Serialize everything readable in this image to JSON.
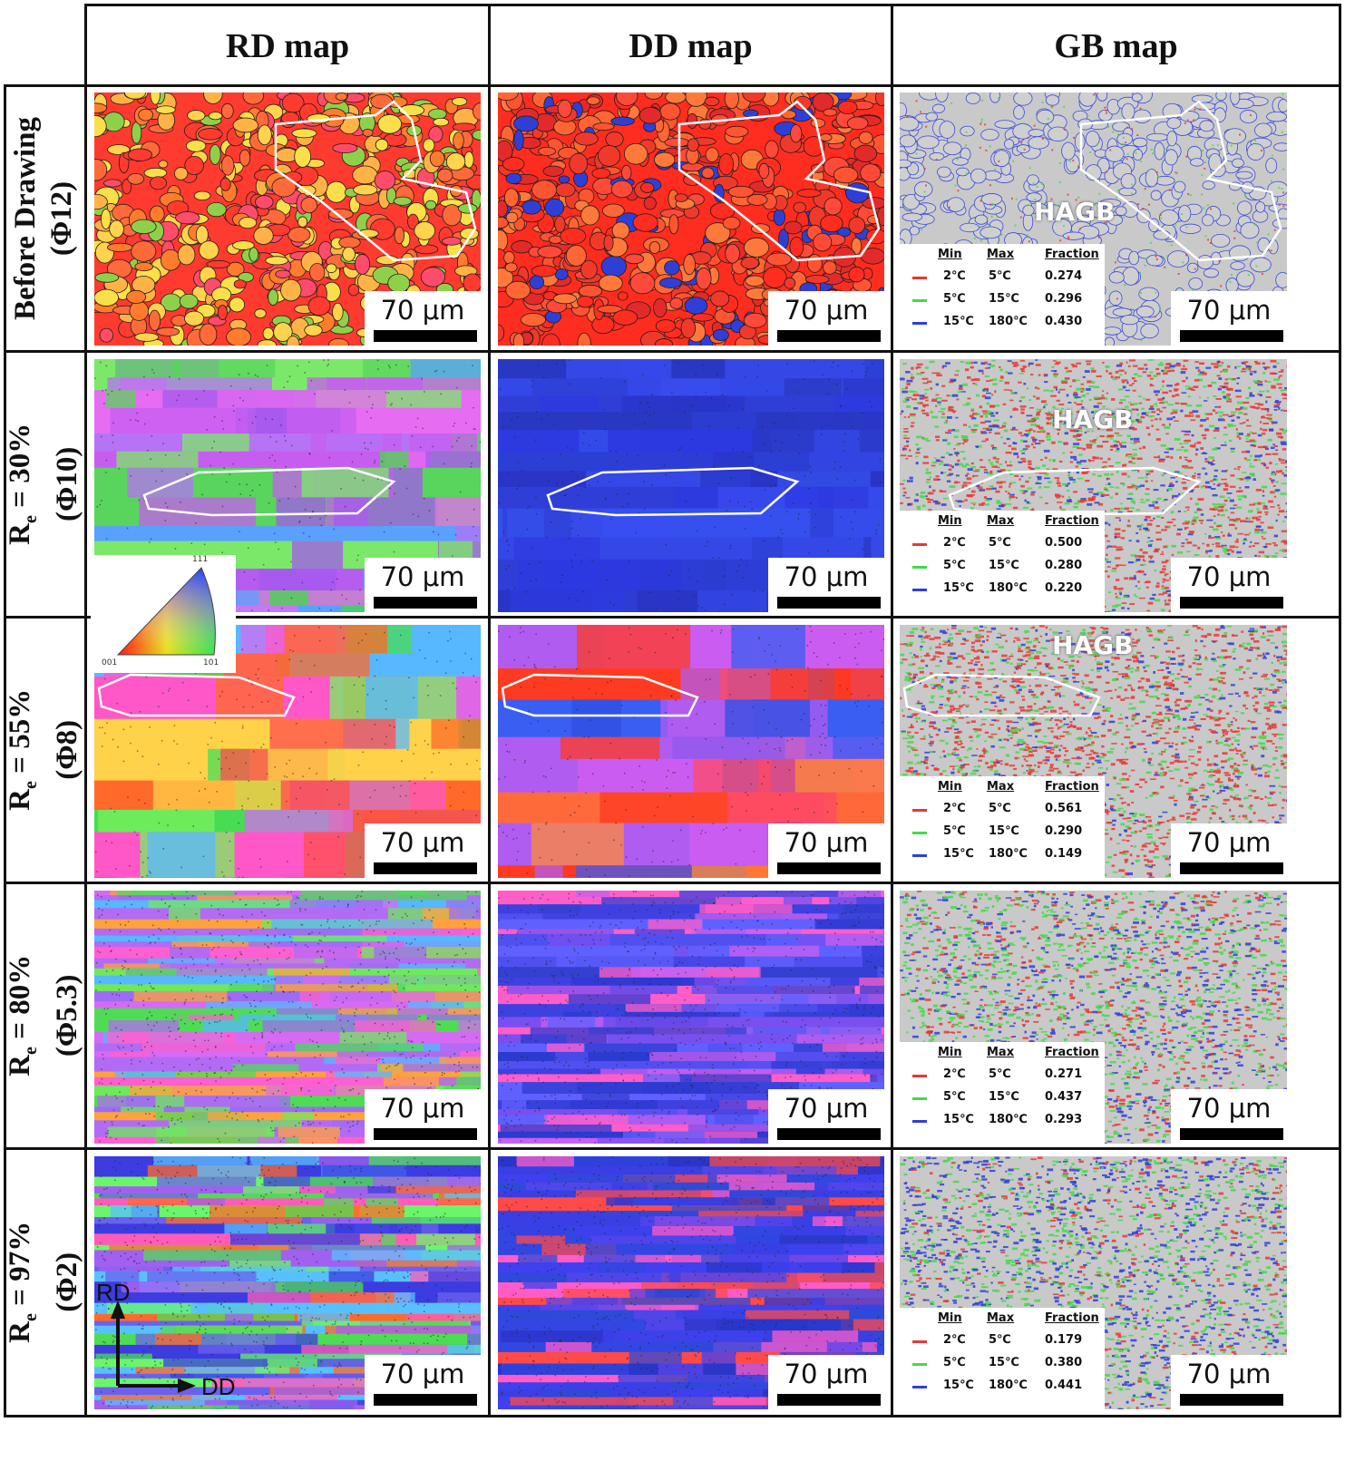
{
  "columns": {
    "rd": "RD map",
    "dd": "DD map",
    "gb": "GB map"
  },
  "rows": [
    {
      "label_line1": "Before Drawing",
      "label_line2": "(Φ12)",
      "re_value": null
    },
    {
      "label_line1": "= 30%",
      "label_line2": "(Φ10)",
      "re_value": "30%"
    },
    {
      "label_line1": "= 55%",
      "label_line2": "(Φ8)",
      "re_value": "55%"
    },
    {
      "label_line1": "= 80%",
      "label_line2": "(Φ5.3)",
      "re_value": "80%"
    },
    {
      "label_line1": "= 97%",
      "label_line2": "(Φ2)",
      "re_value": "97%"
    }
  ],
  "re_symbol": "R",
  "re_subscript": "e",
  "scale_bar_label": "70 μm",
  "hagb_label": "HAGB",
  "legend_headers": {
    "min": "Min",
    "max": "Max",
    "fraction": "Fraction"
  },
  "legend_rows": [
    {
      "min": "2℃",
      "max": "5℃",
      "color": "#e53935"
    },
    {
      "min": "5℃",
      "max": "15℃",
      "color": "#43d94a"
    },
    {
      "min": "15℃",
      "max": "180℃",
      "color": "#2f3fd6"
    }
  ],
  "gb_fractions": [
    [
      "0.274",
      "0.296",
      "0.430"
    ],
    [
      "0.500",
      "0.280",
      "0.220"
    ],
    [
      "0.561",
      "0.290",
      "0.149"
    ],
    [
      "0.271",
      "0.437",
      "0.293"
    ],
    [
      "0.179",
      "0.380",
      "0.441"
    ]
  ],
  "ipf_key": {
    "top": "111",
    "left": "001",
    "right": "101"
  },
  "axes": {
    "vertical": "RD",
    "horizontal": "DD"
  },
  "colors": {
    "red": "#e83a2a",
    "blue": "#2f3fd6",
    "green": "#3ddc4a",
    "magenta": "#c95be8",
    "grid": "#111111"
  }
}
